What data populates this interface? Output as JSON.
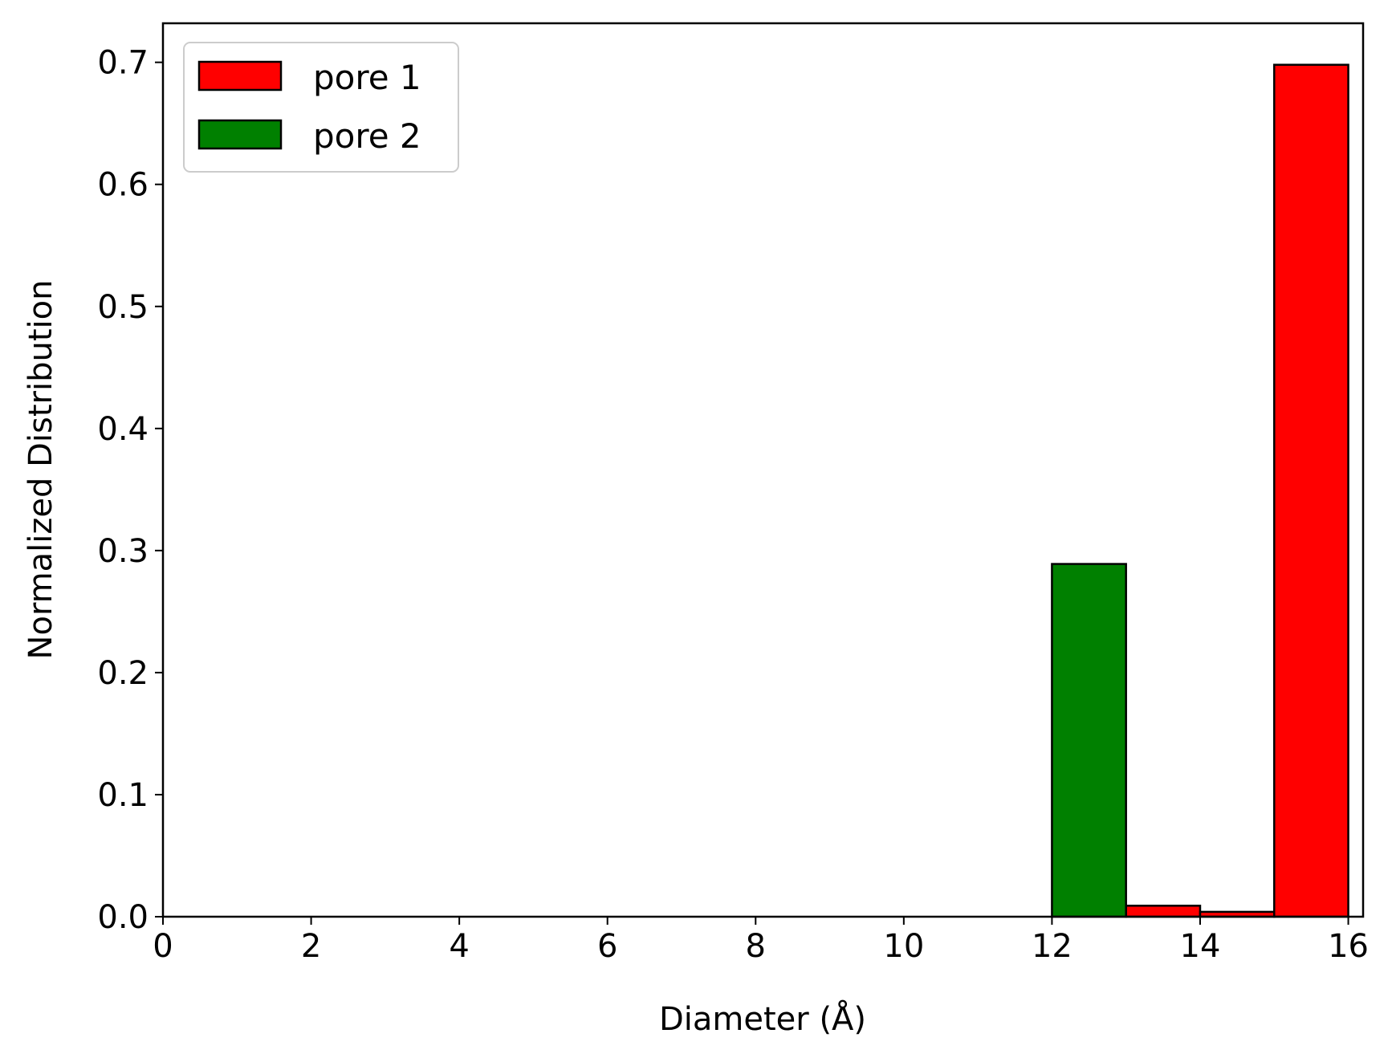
{
  "chart_data": {
    "type": "bar",
    "title": "",
    "xlabel": "Diameter (Å)",
    "ylabel": "Normalized Distribution",
    "xlim": [
      0,
      16.2
    ],
    "ylim": [
      0,
      0.732
    ],
    "xticks": [
      0,
      2,
      4,
      6,
      8,
      10,
      12,
      14,
      16
    ],
    "xtick_labels": [
      "0",
      "2",
      "4",
      "6",
      "8",
      "10",
      "12",
      "14",
      "16"
    ],
    "yticks": [
      0.0,
      0.1,
      0.2,
      0.3,
      0.4,
      0.5,
      0.6,
      0.7
    ],
    "ytick_labels": [
      "0.0",
      "0.1",
      "0.2",
      "0.3",
      "0.4",
      "0.5",
      "0.6",
      "0.7"
    ],
    "grid": false,
    "legend_position": "top-left",
    "series": [
      {
        "name": "pore 1",
        "color": "#ff0000",
        "bins": [
          {
            "x0": 13,
            "x1": 14,
            "value": 0.009
          },
          {
            "x0": 14,
            "x1": 15,
            "value": 0.004
          },
          {
            "x0": 15,
            "x1": 16,
            "value": 0.698
          }
        ]
      },
      {
        "name": "pore 2",
        "color": "#008000",
        "bins": [
          {
            "x0": 12,
            "x1": 13,
            "value": 0.289
          }
        ]
      }
    ]
  }
}
